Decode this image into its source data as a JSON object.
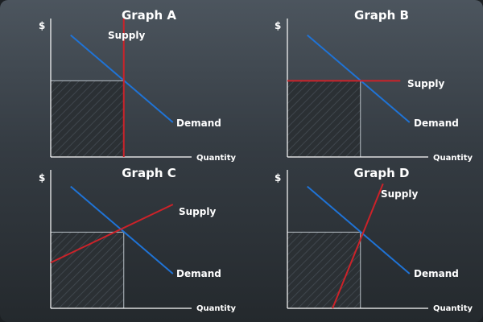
{
  "chart_data": [
    {
      "type": "line",
      "title": "Graph A",
      "ylabel": "$",
      "xlabel": "Quantity",
      "equilibrium": {
        "x": 0.55,
        "y": 0.55
      },
      "shaded_region": "area under equilibrium price up to equilibrium quantity (total revenue)",
      "series": [
        {
          "name": "Supply",
          "color": "#cc2229",
          "points": [
            [
              0.55,
              0.0
            ],
            [
              0.55,
              1.0
            ]
          ]
        },
        {
          "name": "Demand",
          "color": "#1f73d6",
          "points": [
            [
              0.15,
              0.88
            ],
            [
              0.92,
              0.25
            ]
          ]
        }
      ]
    },
    {
      "type": "line",
      "title": "Graph B",
      "ylabel": "$",
      "xlabel": "Quantity",
      "equilibrium": {
        "x": 0.55,
        "y": 0.55
      },
      "series": [
        {
          "name": "Supply",
          "color": "#cc2229",
          "points": [
            [
              0.0,
              0.55
            ],
            [
              0.85,
              0.55
            ]
          ]
        },
        {
          "name": "Demand",
          "color": "#1f73d6",
          "points": [
            [
              0.15,
              0.88
            ],
            [
              0.92,
              0.25
            ]
          ]
        }
      ]
    },
    {
      "type": "line",
      "title": "Graph C",
      "ylabel": "$",
      "xlabel": "Quantity",
      "equilibrium": {
        "x": 0.55,
        "y": 0.55
      },
      "series": [
        {
          "name": "Supply",
          "color": "#cc2229",
          "points": [
            [
              0.0,
              0.33
            ],
            [
              0.92,
              0.75
            ]
          ]
        },
        {
          "name": "Demand",
          "color": "#1f73d6",
          "points": [
            [
              0.15,
              0.88
            ],
            [
              0.92,
              0.25
            ]
          ]
        }
      ]
    },
    {
      "type": "line",
      "title": "Graph D",
      "ylabel": "$",
      "xlabel": "Quantity",
      "equilibrium": {
        "x": 0.55,
        "y": 0.55
      },
      "series": [
        {
          "name": "Supply",
          "color": "#cc2229",
          "points": [
            [
              0.34,
              0.0
            ],
            [
              0.72,
              0.9
            ]
          ]
        },
        {
          "name": "Demand",
          "color": "#1f73d6",
          "points": [
            [
              0.15,
              0.88
            ],
            [
              0.92,
              0.25
            ]
          ]
        }
      ]
    }
  ],
  "colors": {
    "supply": "#cc2229",
    "demand": "#1f73d6",
    "axis": "#ffffff",
    "guide": "#b9c0c6"
  }
}
